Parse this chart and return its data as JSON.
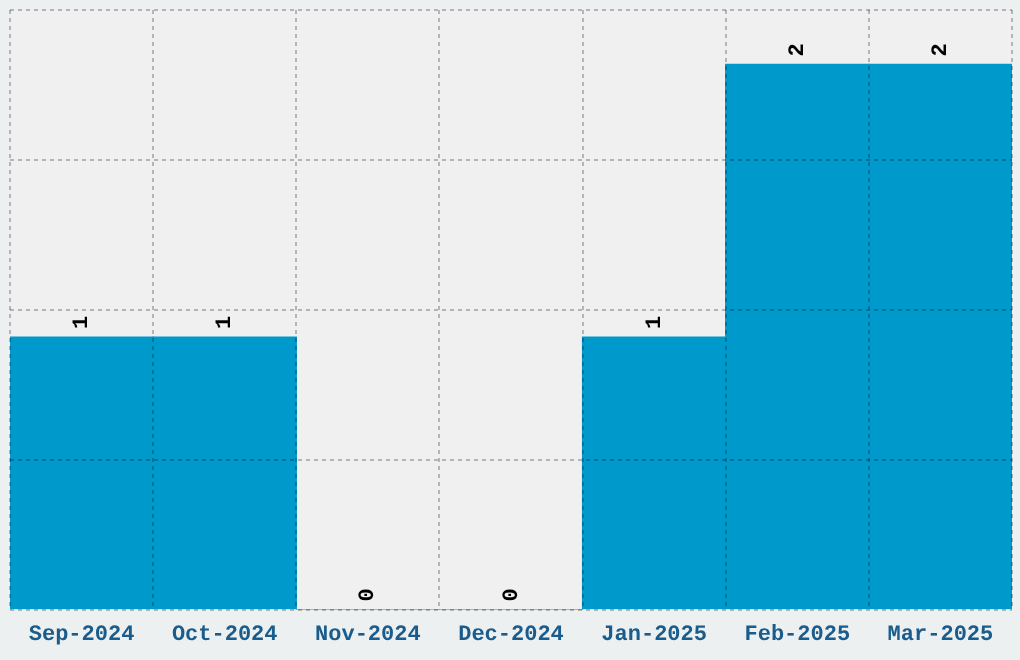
{
  "chart_data": {
    "type": "bar",
    "categories": [
      "Sep-2024",
      "Oct-2024",
      "Nov-2024",
      "Dec-2024",
      "Jan-2025",
      "Feb-2025",
      "Mar-2025"
    ],
    "values": [
      1,
      1,
      0,
      0,
      1,
      2,
      2
    ],
    "color": "#0099cc",
    "ylim": [
      0,
      2.2
    ],
    "yticks": [
      {
        "value": 0,
        "label": null
      },
      {
        "value": 0.55,
        "label": null
      },
      {
        "value": 1.1,
        "label": null
      },
      {
        "value": 1.65,
        "label": null
      },
      {
        "value": 2.2,
        "label": null
      }
    ],
    "tick_labels": "x",
    "grid": true,
    "data_labels": true
  }
}
